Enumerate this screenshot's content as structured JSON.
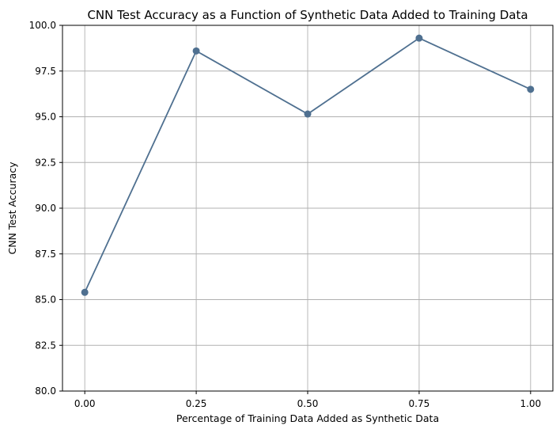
{
  "chart_data": {
    "type": "line",
    "title": "CNN Test Accuracy as a Function of Synthetic Data Added to Training Data",
    "xlabel": "Percentage of Training Data Added as Synthetic Data",
    "ylabel": "CNN Test Accuracy",
    "x": [
      0.0,
      0.25,
      0.5,
      0.75,
      1.0
    ],
    "series": [
      {
        "values": [
          85.4,
          98.6,
          95.15,
          99.3,
          96.5
        ],
        "color": "#4f7090",
        "marker": "circle"
      }
    ],
    "xlim": [
      -0.05,
      1.05
    ],
    "ylim": [
      80.0,
      100.0
    ],
    "xticks": [
      "0.00",
      "0.25",
      "0.50",
      "0.75",
      "1.00"
    ],
    "xtick_values": [
      0.0,
      0.25,
      0.5,
      0.75,
      1.0
    ],
    "yticks": [
      "80.0",
      "82.5",
      "85.0",
      "87.5",
      "90.0",
      "92.5",
      "95.0",
      "97.5",
      "100.0"
    ],
    "ytick_values": [
      80.0,
      82.5,
      85.0,
      87.5,
      90.0,
      92.5,
      95.0,
      97.5,
      100.0
    ],
    "grid": true,
    "grid_color": "#b0b0b0",
    "axis_color": "#000000"
  }
}
